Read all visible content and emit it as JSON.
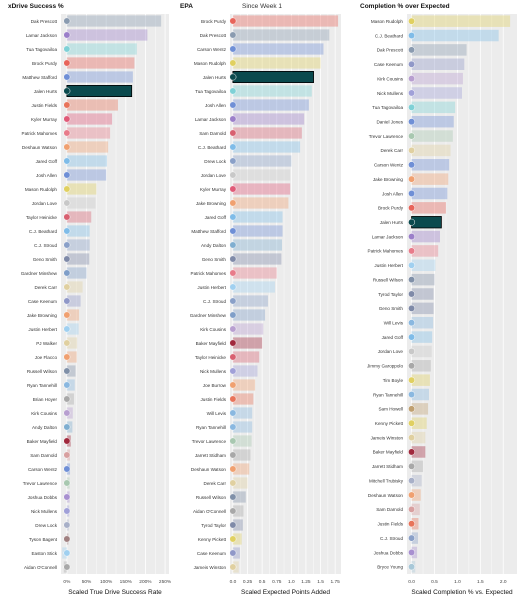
{
  "subtitle": "Since Week 1",
  "colors": {
    "panel_bg": "#ececec",
    "grid": "#ffffff",
    "highlight_fill": "#0b4a4e",
    "highlight_stroke": "#000000"
  },
  "chart_data": [
    {
      "type": "bar",
      "title": "xDrive Success %",
      "xlabel": "Scaled True Drive Success Rate",
      "ticks": [
        0,
        0.5,
        1.0,
        1.5,
        2.0,
        2.5
      ],
      "tick_labels": [
        "0%",
        "50%",
        "100%",
        "150%",
        "200%",
        "250%"
      ],
      "xlim": [
        -0.15,
        2.6
      ],
      "highlight": "Jalen Hurts",
      "players": [
        "Dak Prescott",
        "Lamar Jackson",
        "Tua Tagovailoa",
        "Brock Purdy",
        "Matthew Stafford",
        "Jalen Hurts",
        "Justin Fields",
        "Kyler Murray",
        "Patrick Mahomes",
        "Deshaun Watson",
        "Jared Goff",
        "Josh Allen",
        "Mason Rudolph",
        "Jordan Love",
        "Taylor Heinicke",
        "C.J. Beathard",
        "C.J. Stroud",
        "Geno Smith",
        "Gardner Minshew",
        "Derek Carr",
        "Case Keenum",
        "Jake Browning",
        "Justin Herbert",
        "PJ Walker",
        "Joe Flacco",
        "Russell Wilson",
        "Ryan Tannehill",
        "Brian Hoyer",
        "Kirk Cousins",
        "Andy Dalton",
        "Baker Mayfield",
        "Sam Darnold",
        "Carson Wentz",
        "Trevor Lawrence",
        "Joshua Dobbs",
        "Nick Mullens",
        "Drew Lock",
        "Tyson Bagent",
        "Easton Stick",
        "Aidan O'Connell"
      ],
      "values": [
        2.4,
        2.05,
        1.78,
        1.72,
        1.68,
        1.65,
        1.3,
        1.15,
        1.1,
        1.05,
        1.02,
        1.0,
        0.75,
        0.73,
        0.62,
        0.58,
        0.58,
        0.57,
        0.5,
        0.4,
        0.35,
        0.31,
        0.3,
        0.26,
        0.25,
        0.22,
        0.2,
        0.18,
        0.15,
        0.14,
        0.1,
        0.08,
        0.08,
        0.07,
        0.07,
        0.06,
        0.05,
        0.04,
        -0.12,
        -0.08
      ],
      "colors": [
        "#8a9bb0",
        "#9b7fc9",
        "#7fd1d6",
        "#e8645a",
        "#6f8fd6",
        "#0b4a4e",
        "#e8735a",
        "#e05a78",
        "#e87b8a",
        "#f0a070",
        "#7fbce8",
        "#6f8fd6",
        "#e0d060",
        "#c8c8c8",
        "#d86070",
        "#7fbce8",
        "#8aa0c8",
        "#7f8aa8",
        "#7f9ec8",
        "#e0d0a0",
        "#9098c8",
        "#f0a070",
        "#a0d0f0",
        "#e0d0a0",
        "#f0a070",
        "#8090a8",
        "#8ab8e0",
        "#a8a8a8",
        "#b89fd0",
        "#7faed0",
        "#a0283c",
        "#d8a0a0",
        "#6f8fd6",
        "#a8c8b0",
        "#a890d0",
        "#a0a0d8",
        "#a8b0c8",
        "#a08080",
        "#a0d0f0",
        "#a8a8a8"
      ]
    },
    {
      "type": "bar",
      "title": "EPA",
      "xlabel": "Scaled Expected Points Added",
      "ticks": [
        0,
        0.25,
        0.5,
        0.75,
        1.0,
        1.25,
        1.5,
        1.75
      ],
      "tick_labels": [
        "0.0",
        "0.25",
        "0.5",
        "0.75",
        "1.0",
        "1.25",
        "1.5",
        "1.75"
      ],
      "xlim": [
        -0.05,
        1.85
      ],
      "highlight": "Jalen Hurts",
      "players": [
        "Brock Purdy",
        "Dak Prescott",
        "Carson Wentz",
        "Mason Rudolph",
        "Jalen Hurts",
        "Tua Tagovailoa",
        "Josh Allen",
        "Lamar Jackson",
        "Sam Darnold",
        "C.J. Beathard",
        "Drew Lock",
        "Jordan Love",
        "Kyler Murray",
        "Jake Browning",
        "Jared Goff",
        "Matthew Stafford",
        "Andy Dalton",
        "Geno Smith",
        "Patrick Mahomes",
        "Justin Herbert",
        "C.J. Stroud",
        "Gardner Minshew",
        "Kirk Cousins",
        "Baker Mayfield",
        "Taylor Heinicke",
        "Nick Mullens",
        "Joe Burrow",
        "Justin Fields",
        "Will Levis",
        "Ryan Tannehill",
        "Trevor Lawrence",
        "Jarrett Stidham",
        "Deshaun Watson",
        "Derek Carr",
        "Russell Wilson",
        "Aidan O'Connell",
        "Tyrod Taylor",
        "Kenny Pickett",
        "Case Keenum",
        "Jameis Winston"
      ],
      "values": [
        1.8,
        1.65,
        1.55,
        1.5,
        1.38,
        1.35,
        1.3,
        1.22,
        1.18,
        1.15,
        1.0,
        0.98,
        0.98,
        0.95,
        0.85,
        0.85,
        0.84,
        0.83,
        0.75,
        0.72,
        0.6,
        0.55,
        0.52,
        0.5,
        0.45,
        0.42,
        0.38,
        0.35,
        0.33,
        0.33,
        0.32,
        0.3,
        0.28,
        0.25,
        0.22,
        0.18,
        0.17,
        0.15,
        0.12,
        0.1
      ],
      "colors": [
        "#e8645a",
        "#8a9bb0",
        "#6f8fd6",
        "#e0d060",
        "#0b4a4e",
        "#7fd1d6",
        "#6f8fd6",
        "#9b7fc9",
        "#d86070",
        "#7fbce8",
        "#8aa0c8",
        "#c8c8c8",
        "#e05a78",
        "#f0a070",
        "#7fbce8",
        "#6f8fd6",
        "#7faed0",
        "#7f8aa8",
        "#e87b8a",
        "#a0d0f0",
        "#8aa0c8",
        "#7f9ec8",
        "#b89fd0",
        "#a0283c",
        "#d86070",
        "#a0a0d8",
        "#f0a070",
        "#e8735a",
        "#8ab8e0",
        "#8ab8e0",
        "#a8c8b0",
        "#a8a8a8",
        "#f0a070",
        "#e0d0a0",
        "#8090a8",
        "#a8a8a8",
        "#7f8aa8",
        "#e0d060",
        "#9098c8",
        "#e0d0a0"
      ]
    },
    {
      "type": "bar",
      "title": "Completion % over Expected",
      "xlabel": "Scaled Completion % vs. Expected",
      "ticks": [
        0,
        0.5,
        1.0,
        1.5,
        2.0
      ],
      "tick_labels": [
        "0.0",
        "0.5",
        "1.0",
        "1.5",
        "2.0"
      ],
      "xlim": [
        -0.1,
        2.3
      ],
      "highlight": "Jalen Hurts",
      "players": [
        "Mason Rudolph",
        "C.J. Beathard",
        "Dak Prescott",
        "Case Keenum",
        "Kirk Cousins",
        "Nick Mullens",
        "Tua Tagovailoa",
        "Daniel Jones",
        "Trevor Lawrence",
        "Derek Carr",
        "Carson Wentz",
        "Jake Browning",
        "Josh Allen",
        "Brock Purdy",
        "Jalen Hurts",
        "Lamar Jackson",
        "Patrick Mahomes",
        "Justin Herbert",
        "Russell Wilson",
        "Tyrod Taylor",
        "Geno Smith",
        "Will Levis",
        "Jared Goff",
        "Jordan Love",
        "Jimmy Garoppolo",
        "Tim Boyle",
        "Ryan Tannehill",
        "Sam Howell",
        "Kenny Pickett",
        "Jameis Winston",
        "Baker Mayfield",
        "Jarrett Stidham",
        "Mitchell Trubisky",
        "Deshaun Watson",
        "Sam Darnold",
        "Justin Fields",
        "C.J. Stroud",
        "Joshua Dobbs",
        "Bryce Young"
      ],
      "values": [
        2.15,
        1.9,
        1.2,
        1.15,
        1.12,
        1.1,
        0.95,
        0.92,
        0.9,
        0.85,
        0.82,
        0.8,
        0.78,
        0.75,
        0.65,
        0.62,
        0.58,
        0.52,
        0.5,
        0.48,
        0.48,
        0.47,
        0.45,
        0.44,
        0.42,
        0.4,
        0.38,
        0.36,
        0.33,
        0.3,
        0.3,
        0.25,
        0.22,
        0.2,
        0.18,
        0.15,
        0.14,
        0.12,
        0.08
      ],
      "colors": [
        "#e0d060",
        "#7fbce8",
        "#8a9bb0",
        "#9098c8",
        "#b89fd0",
        "#a0a0d8",
        "#7fd1d6",
        "#6f8fd6",
        "#a8c8b0",
        "#e0d0a0",
        "#6f8fd6",
        "#f0a070",
        "#6f8fd6",
        "#e8645a",
        "#0b4a4e",
        "#9b7fc9",
        "#e87b8a",
        "#a0d0f0",
        "#8090a8",
        "#7f8aa8",
        "#7f8aa8",
        "#8ab8e0",
        "#7fbce8",
        "#c8c8c8",
        "#a8a8a8",
        "#e0d060",
        "#8ab8e0",
        "#c0a070",
        "#e0d060",
        "#e0d0a0",
        "#a0283c",
        "#a8a8a8",
        "#a8b0c8",
        "#f0a070",
        "#d8a0a0",
        "#e8735a",
        "#8aa0c8",
        "#a890d0",
        "#a8c8d8"
      ]
    }
  ]
}
